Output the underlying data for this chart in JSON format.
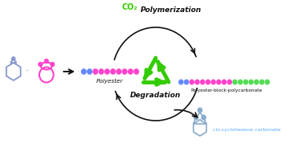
{
  "bg_color": "#ffffff",
  "co2_color": "#33cc00",
  "recycle_color": "#33cc00",
  "pink_bead": "#ff44cc",
  "blue_bead": "#6688ff",
  "green_bead": "#55dd55",
  "epoxide_color": "#8899cc",
  "anhydride_color": "#ff44cc",
  "carbonate_color": "#88aacc",
  "arrow_color": "#111111",
  "label_co2": "CO₂",
  "label_polymerization": "Polymerization",
  "label_degradation": "Degradation",
  "label_polyester": "Polyester",
  "label_pbc": "Polyester-block-polycarbonate",
  "label_cis": "cis-cyclohexene carbonate",
  "cis_color": "#55aaff"
}
